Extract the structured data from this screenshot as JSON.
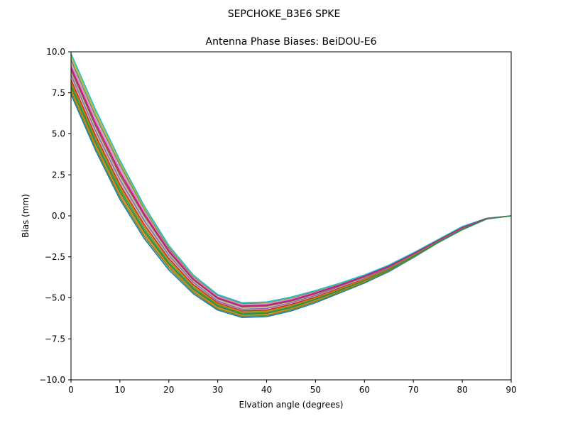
{
  "suptitle": "SEPCHOKE_B3E6   SPKE",
  "chart_data": {
    "type": "line",
    "title": "Antenna Phase Biases: BeiDOU-E6",
    "xlabel": "Elvation angle (degrees)",
    "ylabel": "Bias (mm)",
    "xlim": [
      0,
      90
    ],
    "ylim": [
      -10,
      10
    ],
    "xticks": [
      0,
      10,
      20,
      30,
      40,
      50,
      60,
      70,
      80,
      90
    ],
    "yticks": [
      -10.0,
      -7.5,
      -5.0,
      -2.5,
      0.0,
      2.5,
      5.0,
      7.5,
      10.0
    ],
    "xtick_labels": [
      "0",
      "10",
      "20",
      "30",
      "40",
      "50",
      "60",
      "70",
      "80",
      "90"
    ],
    "ytick_labels": [
      "−10.0",
      "−7.5",
      "−5.0",
      "−2.5",
      "0.0",
      "2.5",
      "5.0",
      "7.5",
      "10.0"
    ],
    "grid": false,
    "legend": false,
    "series_count_note": "many overlapping azimuth curves bounded by the envelope below",
    "x": [
      0,
      5,
      10,
      15,
      20,
      25,
      30,
      35,
      40,
      45,
      50,
      55,
      60,
      65,
      70,
      75,
      80,
      85,
      90
    ],
    "envelope_upper": [
      9.9,
      6.5,
      3.4,
      0.6,
      -1.8,
      -3.6,
      -4.8,
      -5.3,
      -5.25,
      -4.95,
      -4.55,
      -4.1,
      -3.6,
      -3.0,
      -2.25,
      -1.45,
      -0.65,
      -0.15,
      0.0
    ],
    "envelope_lower": [
      7.4,
      4.0,
      1.0,
      -1.4,
      -3.3,
      -4.75,
      -5.75,
      -6.2,
      -6.15,
      -5.8,
      -5.3,
      -4.7,
      -4.1,
      -3.4,
      -2.55,
      -1.65,
      -0.85,
      -0.2,
      0.0
    ],
    "series": [
      {
        "color": "#1f77b4",
        "values": [
          7.4,
          4.0,
          1.0,
          -1.4,
          -3.3,
          -4.75,
          -5.75,
          -6.2,
          -6.15,
          -5.8,
          -5.3,
          -4.7,
          -4.1,
          -3.4,
          -2.55,
          -1.65,
          -0.85,
          -0.2,
          0.0
        ]
      },
      {
        "color": "#ff7f0e",
        "values": [
          7.7,
          4.3,
          1.3,
          -1.1,
          -3.05,
          -4.55,
          -5.6,
          -6.05,
          -6.0,
          -5.65,
          -5.15,
          -4.6,
          -4.0,
          -3.3,
          -2.5,
          -1.62,
          -0.82,
          -0.19,
          0.0
        ]
      },
      {
        "color": "#2ca02c",
        "values": [
          8.0,
          4.6,
          1.6,
          -0.85,
          -2.85,
          -4.4,
          -5.45,
          -5.95,
          -5.9,
          -5.55,
          -5.05,
          -4.5,
          -3.9,
          -3.25,
          -2.45,
          -1.6,
          -0.8,
          -0.18,
          0.0
        ]
      },
      {
        "color": "#d62728",
        "values": [
          8.3,
          4.9,
          1.9,
          -0.55,
          -2.6,
          -4.2,
          -5.3,
          -5.8,
          -5.75,
          -5.4,
          -4.95,
          -4.4,
          -3.85,
          -3.2,
          -2.4,
          -1.57,
          -0.77,
          -0.17,
          0.0
        ]
      },
      {
        "color": "#9467bd",
        "values": [
          8.6,
          5.2,
          2.2,
          -0.3,
          -2.4,
          -4.05,
          -5.2,
          -5.7,
          -5.65,
          -5.3,
          -4.85,
          -4.3,
          -3.75,
          -3.15,
          -2.37,
          -1.55,
          -0.75,
          -0.17,
          0.0
        ]
      },
      {
        "color": "#8c564b",
        "values": [
          8.9,
          5.5,
          2.5,
          0.0,
          -2.2,
          -3.9,
          -5.05,
          -5.55,
          -5.5,
          -5.2,
          -4.75,
          -4.25,
          -3.7,
          -3.1,
          -2.33,
          -1.52,
          -0.72,
          -0.16,
          0.0
        ]
      },
      {
        "color": "#e377c2",
        "values": [
          9.2,
          5.8,
          2.8,
          0.2,
          -2.05,
          -3.8,
          -4.95,
          -5.45,
          -5.4,
          -5.1,
          -4.65,
          -4.2,
          -3.65,
          -3.05,
          -2.3,
          -1.5,
          -0.7,
          -0.16,
          0.0
        ]
      },
      {
        "color": "#7f7f7f",
        "values": [
          9.5,
          6.1,
          3.1,
          0.4,
          -1.95,
          -3.7,
          -4.85,
          -5.35,
          -5.3,
          -5.0,
          -4.6,
          -4.15,
          -3.62,
          -3.02,
          -2.27,
          -1.47,
          -0.67,
          -0.15,
          0.0
        ]
      },
      {
        "color": "#bcbd22",
        "values": [
          9.7,
          6.3,
          3.25,
          0.5,
          -1.85,
          -3.65,
          -4.8,
          -5.3,
          -5.27,
          -4.97,
          -4.57,
          -4.12,
          -3.61,
          -3.01,
          -2.26,
          -1.46,
          -0.66,
          -0.15,
          0.0
        ]
      },
      {
        "color": "#17becf",
        "values": [
          9.9,
          6.5,
          3.4,
          0.6,
          -1.8,
          -3.6,
          -4.8,
          -5.3,
          -5.25,
          -4.95,
          -4.55,
          -4.1,
          -3.6,
          -3.0,
          -2.25,
          -1.45,
          -0.65,
          -0.15,
          0.0
        ]
      },
      {
        "color": "#6b8e23",
        "values": [
          7.55,
          4.15,
          1.15,
          -1.25,
          -3.15,
          -4.65,
          -5.68,
          -6.12,
          -6.08,
          -5.72,
          -5.22,
          -4.65,
          -4.05,
          -3.35,
          -2.52,
          -1.63,
          -0.83,
          -0.19,
          0.0
        ]
      },
      {
        "color": "#b8860b",
        "values": [
          8.15,
          4.75,
          1.75,
          -0.7,
          -2.72,
          -4.3,
          -5.38,
          -5.88,
          -5.82,
          -5.48,
          -5.0,
          -4.45,
          -3.88,
          -3.22,
          -2.42,
          -1.58,
          -0.78,
          -0.18,
          0.0
        ]
      },
      {
        "color": "#c71585",
        "values": [
          9.05,
          5.65,
          2.65,
          0.1,
          -2.12,
          -3.85,
          -5.0,
          -5.5,
          -5.45,
          -5.15,
          -4.7,
          -4.22,
          -3.67,
          -3.07,
          -2.31,
          -1.51,
          -0.71,
          -0.16,
          0.0
        ]
      },
      {
        "color": "#2e8b57",
        "values": [
          7.85,
          4.45,
          1.45,
          -0.98,
          -2.95,
          -4.48,
          -5.52,
          -6.0,
          -5.95,
          -5.6,
          -5.1,
          -4.55,
          -3.95,
          -3.28,
          -2.47,
          -1.61,
          -0.81,
          -0.18,
          0.0
        ]
      }
    ]
  }
}
